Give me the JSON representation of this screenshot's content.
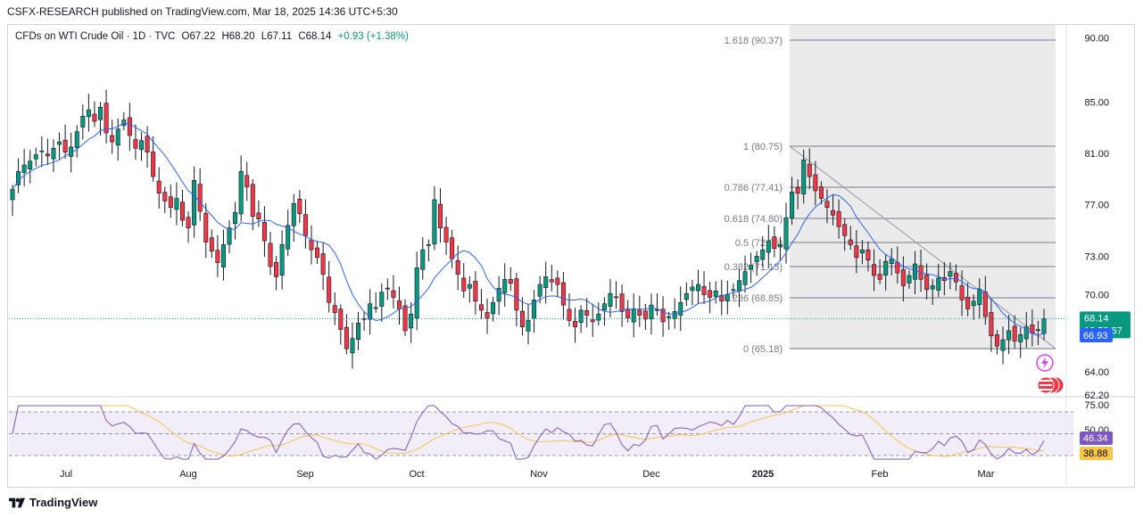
{
  "header": {
    "publisher": "CSFX-RESEARCH published on TradingView.com, Mar 18, 2025 14:36 UTC+5:30"
  },
  "legend": {
    "symbol": "CFDs on WTI Crude Oil · 1D · TVC",
    "open": "O67.22",
    "high": "H68.20",
    "low": "L67.11",
    "close": "C68.14",
    "change": "+0.93 (+1.38%)"
  },
  "footer": {
    "brand": "TradingView"
  },
  "colors": {
    "up": "#089981",
    "down": "#f23645",
    "ma": "#2962ff",
    "rsi": "#7e57c2",
    "rsi_ma": "#f7c548",
    "fib": "#787b86"
  },
  "price_axis": {
    "ticks": [
      "90.00",
      "85.00",
      "81.00",
      "77.00",
      "73.00",
      "70.00",
      "64.00",
      "62.20"
    ],
    "last_price": "68.14",
    "countdown": "12:53:57",
    "ma_value": "66.93"
  },
  "time_axis": {
    "labels": [
      "Jul",
      "Aug",
      "Sep",
      "Oct",
      "Nov",
      "Dec",
      "2025",
      "Feb",
      "Mar"
    ]
  },
  "fib_labels": [
    "1.618 (90.37)",
    "1 (80.75)",
    "0.786 (77.41)",
    "0.618 (74.80)",
    "0.5 (72.96)",
    "0.382 (71.13)",
    "0.236 (68.85)",
    "0 (65.18)"
  ],
  "rsi": {
    "ticks": [
      "75.00",
      "50.00"
    ],
    "rsi_value": "46.34",
    "ma_value": "38.88"
  },
  "chart_data": {
    "type": "candlestick",
    "symbol": "CFDs on WTI Crude Oil",
    "interval": "1D",
    "ylim": [
      62.2,
      91.0
    ],
    "series_ohlc_close": [
      78.2,
      79.6,
      80.1,
      80.4,
      80.9,
      81.2,
      80.8,
      81.4,
      81.9,
      81.1,
      81.5,
      82.7,
      83.9,
      84.4,
      83.5,
      84.6,
      82.6,
      81.9,
      82.9,
      83.6,
      82.4,
      81.4,
      82.0,
      81.1,
      79.2,
      77.9,
      77.3,
      76.8,
      77.5,
      75.8,
      75.2,
      78.9,
      76.5,
      74.1,
      73.4,
      72.5,
      73.9,
      75.2,
      76.4,
      79.6,
      78.4,
      76.1,
      75.9,
      74.2,
      72.2,
      71.4,
      73.9,
      75.4,
      77.1,
      76.3,
      74.6,
      73.5,
      72.9,
      71.6,
      69.4,
      68.6,
      67.3,
      65.8,
      66.6,
      67.8,
      68.1,
      69.3,
      69.0,
      70.2,
      70.5,
      69.8,
      68.9,
      67.2,
      68.5,
      72.1,
      73.5,
      73.9,
      77.4,
      75.2,
      74.1,
      72.8,
      71.6,
      70.3,
      70.8,
      69.5,
      68.8,
      68.2,
      69.4,
      70.5,
      71.2,
      70.9,
      68.8,
      67.5,
      68.0,
      69.6,
      70.8,
      71.4,
      71.0,
      70.8,
      69.2,
      68.0,
      67.5,
      68.8,
      68.4,
      67.9,
      68.5,
      69.3,
      70.1,
      69.8,
      68.7,
      68.2,
      68.9,
      68.4,
      68.1,
      69.2,
      68.8,
      67.9,
      68.3,
      68.7,
      69.4,
      70.1,
      70.6,
      70.8,
      70.0,
      69.8,
      70.3,
      69.5,
      70.0,
      70.4,
      71.1,
      71.8,
      72.3,
      73.0,
      73.5,
      74.2,
      73.6,
      73.9,
      76.0,
      78.0,
      77.9,
      80.5,
      79.2,
      78.1,
      77.5,
      76.8,
      76.2,
      75.3,
      74.6,
      73.9,
      72.9,
      73.5,
      72.7,
      71.5,
      71.2,
      72.6,
      72.8,
      71.7,
      70.7,
      71.5,
      72.4,
      71.2,
      70.4,
      70.7,
      71.3,
      71.1,
      71.8,
      71.0,
      69.6,
      68.9,
      69.5,
      70.4,
      68.3,
      66.8,
      66.0,
      66.5,
      67.2,
      66.4,
      66.9,
      67.5,
      67.0,
      67.22,
      68.14
    ]
  }
}
